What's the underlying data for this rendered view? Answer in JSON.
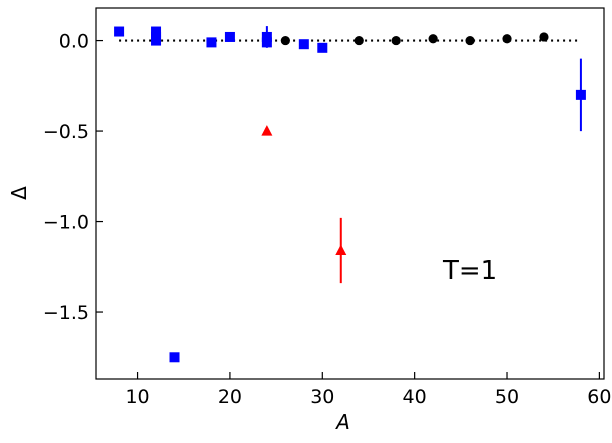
{
  "chart_data": {
    "type": "scatter",
    "xlabel": "A",
    "ylabel": "Δ",
    "xlim": [
      5.5,
      60.5
    ],
    "ylim": [
      -1.87,
      0.18
    ],
    "xticks": [
      10,
      20,
      30,
      40,
      50,
      60
    ],
    "yticks": [
      0.0,
      -0.5,
      -1.0,
      -1.5
    ],
    "xtick_labels": [
      "10",
      "20",
      "30",
      "40",
      "50",
      "60"
    ],
    "ytick_labels": [
      "0.0",
      "−0.5",
      "−1.0",
      "−1.5"
    ],
    "annotation": "T=1",
    "reference_line": {
      "y": 0,
      "x_range": [
        8,
        58
      ],
      "style": "dotted",
      "color": "#000000"
    },
    "series": [
      {
        "marker": "square",
        "color": "#0000ff",
        "points": [
          {
            "x": 8,
            "y": 0.05
          },
          {
            "x": 12,
            "y": 0.05
          },
          {
            "x": 12,
            "y": 0.02
          },
          {
            "x": 12,
            "y": 0.0
          },
          {
            "x": 14,
            "y": -1.75
          },
          {
            "x": 18,
            "y": -0.01
          },
          {
            "x": 20,
            "y": 0.02
          },
          {
            "x": 24,
            "y": 0.02,
            "err": 0.06
          },
          {
            "x": 24,
            "y": -0.01
          },
          {
            "x": 28,
            "y": -0.02
          },
          {
            "x": 30,
            "y": -0.04
          },
          {
            "x": 58,
            "y": -0.3,
            "err": 0.2
          }
        ]
      },
      {
        "marker": "circle",
        "color": "#000000",
        "points": [
          {
            "x": 26,
            "y": 0.0
          },
          {
            "x": 34,
            "y": 0.0
          },
          {
            "x": 38,
            "y": 0.0
          },
          {
            "x": 42,
            "y": 0.01
          },
          {
            "x": 46,
            "y": 0.0
          },
          {
            "x": 50,
            "y": 0.01
          },
          {
            "x": 54,
            "y": 0.02
          }
        ]
      },
      {
        "marker": "triangle",
        "color": "#ff0000",
        "points": [
          {
            "x": 24,
            "y": -0.5
          },
          {
            "x": 32,
            "y": -1.16,
            "err": 0.18
          }
        ]
      }
    ]
  }
}
